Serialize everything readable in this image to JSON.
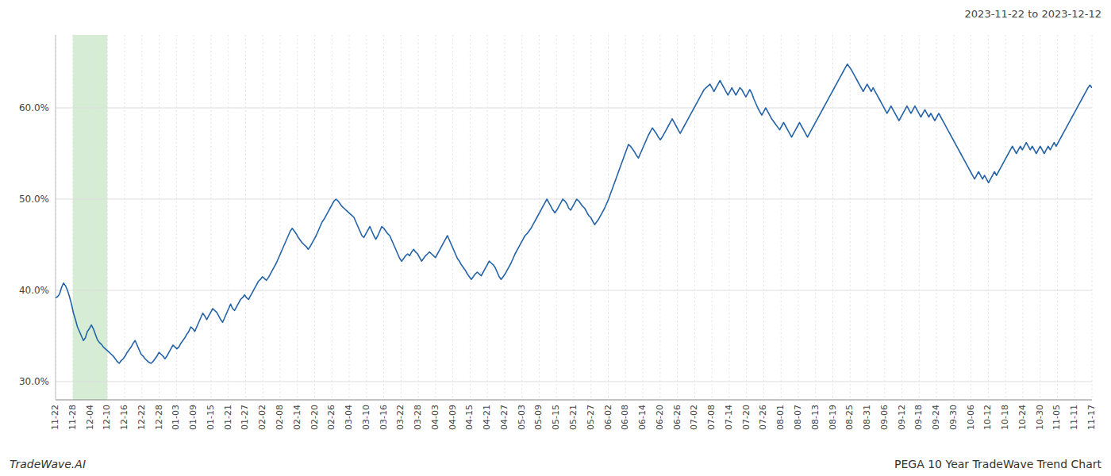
{
  "chart_data": {
    "type": "line",
    "title": "PEGA 10 Year TradeWave Trend Chart",
    "subtitle": "2023-11-22 to 2023-12-12",
    "annotations": [
      "TradeWave.AI"
    ],
    "color": "#2563a8",
    "grid": true,
    "xlim": [
      0,
      60
    ],
    "xticks": [
      {
        "value": 0,
        "label": "11-22"
      },
      {
        "value": 1,
        "label": "11-28"
      },
      {
        "value": 2,
        "label": "12-04"
      },
      {
        "value": 3,
        "label": "12-10"
      },
      {
        "value": 4,
        "label": "12-16"
      },
      {
        "value": 5,
        "label": "12-22"
      },
      {
        "value": 6,
        "label": "12-28"
      },
      {
        "value": 7,
        "label": "01-03"
      },
      {
        "value": 8,
        "label": "01-09"
      },
      {
        "value": 9,
        "label": "01-15"
      },
      {
        "value": 10,
        "label": "01-21"
      },
      {
        "value": 11,
        "label": "01-27"
      },
      {
        "value": 12,
        "label": "02-02"
      },
      {
        "value": 13,
        "label": "02-08"
      },
      {
        "value": 14,
        "label": "02-14"
      },
      {
        "value": 15,
        "label": "02-20"
      },
      {
        "value": 16,
        "label": "02-26"
      },
      {
        "value": 17,
        "label": "03-04"
      },
      {
        "value": 18,
        "label": "03-10"
      },
      {
        "value": 19,
        "label": "03-16"
      },
      {
        "value": 20,
        "label": "03-22"
      },
      {
        "value": 21,
        "label": "03-28"
      },
      {
        "value": 22,
        "label": "04-03"
      },
      {
        "value": 23,
        "label": "04-09"
      },
      {
        "value": 24,
        "label": "04-15"
      },
      {
        "value": 25,
        "label": "04-21"
      },
      {
        "value": 26,
        "label": "04-27"
      },
      {
        "value": 27,
        "label": "05-03"
      },
      {
        "value": 28,
        "label": "05-09"
      },
      {
        "value": 29,
        "label": "05-15"
      },
      {
        "value": 30,
        "label": "05-21"
      },
      {
        "value": 31,
        "label": "05-27"
      },
      {
        "value": 32,
        "label": "06-02"
      },
      {
        "value": 33,
        "label": "06-08"
      },
      {
        "value": 34,
        "label": "06-14"
      },
      {
        "value": 35,
        "label": "06-20"
      },
      {
        "value": 36,
        "label": "06-26"
      },
      {
        "value": 37,
        "label": "07-02"
      },
      {
        "value": 38,
        "label": "07-08"
      },
      {
        "value": 39,
        "label": "07-14"
      },
      {
        "value": 40,
        "label": "07-20"
      },
      {
        "value": 41,
        "label": "07-26"
      },
      {
        "value": 42,
        "label": "08-01"
      },
      {
        "value": 43,
        "label": "08-07"
      },
      {
        "value": 44,
        "label": "08-13"
      },
      {
        "value": 45,
        "label": "08-19"
      },
      {
        "value": 46,
        "label": "08-25"
      },
      {
        "value": 47,
        "label": "08-31"
      },
      {
        "value": 48,
        "label": "09-06"
      },
      {
        "value": 49,
        "label": "09-12"
      },
      {
        "value": 50,
        "label": "09-18"
      },
      {
        "value": 51,
        "label": "09-24"
      },
      {
        "value": 52,
        "label": "09-30"
      },
      {
        "value": 53,
        "label": "10-06"
      },
      {
        "value": 54,
        "label": "10-12"
      },
      {
        "value": 55,
        "label": "10-18"
      },
      {
        "value": 56,
        "label": "10-24"
      },
      {
        "value": 57,
        "label": "10-30"
      },
      {
        "value": 58,
        "label": "11-05"
      },
      {
        "value": 59,
        "label": "11-11"
      },
      {
        "value": 60,
        "label": "11-17"
      }
    ],
    "ylim": [
      0.28,
      0.68
    ],
    "yticks": [
      {
        "value": 0.3,
        "label": "30.0%"
      },
      {
        "value": 0.4,
        "label": "40.0%"
      },
      {
        "value": 0.5,
        "label": "50.0%"
      },
      {
        "value": 0.6,
        "label": "60.0%"
      }
    ],
    "highlight_range": [
      1,
      3
    ],
    "highlight_color": "#d6ecd4",
    "values": [
      0.392,
      0.393,
      0.396,
      0.403,
      0.408,
      0.405,
      0.4,
      0.393,
      0.385,
      0.375,
      0.368,
      0.36,
      0.355,
      0.35,
      0.345,
      0.348,
      0.355,
      0.358,
      0.362,
      0.358,
      0.352,
      0.346,
      0.343,
      0.341,
      0.338,
      0.336,
      0.334,
      0.332,
      0.33,
      0.328,
      0.325,
      0.322,
      0.32,
      0.323,
      0.325,
      0.328,
      0.332,
      0.335,
      0.338,
      0.342,
      0.345,
      0.34,
      0.335,
      0.33,
      0.328,
      0.325,
      0.323,
      0.321,
      0.32,
      0.322,
      0.325,
      0.328,
      0.332,
      0.33,
      0.328,
      0.325,
      0.328,
      0.332,
      0.336,
      0.34,
      0.338,
      0.336,
      0.338,
      0.342,
      0.345,
      0.348,
      0.352,
      0.355,
      0.36,
      0.358,
      0.355,
      0.36,
      0.365,
      0.37,
      0.375,
      0.372,
      0.368,
      0.372,
      0.376,
      0.38,
      0.378,
      0.376,
      0.372,
      0.368,
      0.365,
      0.37,
      0.375,
      0.38,
      0.385,
      0.38,
      0.378,
      0.382,
      0.386,
      0.39,
      0.392,
      0.395,
      0.392,
      0.39,
      0.394,
      0.398,
      0.402,
      0.406,
      0.41,
      0.412,
      0.415,
      0.413,
      0.411,
      0.414,
      0.418,
      0.422,
      0.426,
      0.43,
      0.435,
      0.44,
      0.445,
      0.45,
      0.455,
      0.46,
      0.465,
      0.468,
      0.465,
      0.462,
      0.458,
      0.455,
      0.452,
      0.45,
      0.448,
      0.445,
      0.448,
      0.452,
      0.456,
      0.46,
      0.465,
      0.47,
      0.475,
      0.478,
      0.482,
      0.486,
      0.49,
      0.494,
      0.498,
      0.5,
      0.498,
      0.495,
      0.492,
      0.49,
      0.488,
      0.486,
      0.484,
      0.482,
      0.48,
      0.475,
      0.47,
      0.465,
      0.46,
      0.458,
      0.462,
      0.466,
      0.47,
      0.465,
      0.46,
      0.456,
      0.46,
      0.465,
      0.47,
      0.468,
      0.465,
      0.462,
      0.46,
      0.455,
      0.45,
      0.445,
      0.44,
      0.435,
      0.432,
      0.435,
      0.438,
      0.44,
      0.438,
      0.442,
      0.445,
      0.442,
      0.44,
      0.436,
      0.432,
      0.435,
      0.438,
      0.44,
      0.442,
      0.44,
      0.438,
      0.436,
      0.44,
      0.444,
      0.448,
      0.452,
      0.456,
      0.46,
      0.455,
      0.45,
      0.445,
      0.44,
      0.435,
      0.432,
      0.428,
      0.425,
      0.422,
      0.418,
      0.415,
      0.412,
      0.415,
      0.418,
      0.42,
      0.418,
      0.416,
      0.42,
      0.424,
      0.428,
      0.432,
      0.43,
      0.428,
      0.425,
      0.42,
      0.415,
      0.412,
      0.415,
      0.418,
      0.422,
      0.426,
      0.43,
      0.435,
      0.44,
      0.444,
      0.448,
      0.452,
      0.456,
      0.46,
      0.462,
      0.465,
      0.468,
      0.472,
      0.476,
      0.48,
      0.484,
      0.488,
      0.492,
      0.496,
      0.5,
      0.496,
      0.492,
      0.488,
      0.485,
      0.488,
      0.492,
      0.496,
      0.5,
      0.498,
      0.495,
      0.49,
      0.488,
      0.492,
      0.496,
      0.5,
      0.498,
      0.495,
      0.492,
      0.49,
      0.486,
      0.482,
      0.48,
      0.476,
      0.472,
      0.475,
      0.478,
      0.482,
      0.486,
      0.49,
      0.495,
      0.5,
      0.506,
      0.512,
      0.518,
      0.524,
      0.53,
      0.536,
      0.542,
      0.548,
      0.554,
      0.56,
      0.558,
      0.555,
      0.552,
      0.548,
      0.545,
      0.55,
      0.555,
      0.56,
      0.565,
      0.57,
      0.574,
      0.578,
      0.575,
      0.572,
      0.568,
      0.565,
      0.568,
      0.572,
      0.576,
      0.58,
      0.584,
      0.588,
      0.584,
      0.58,
      0.576,
      0.572,
      0.576,
      0.58,
      0.584,
      0.588,
      0.592,
      0.596,
      0.6,
      0.604,
      0.608,
      0.612,
      0.616,
      0.62,
      0.622,
      0.624,
      0.626,
      0.622,
      0.618,
      0.622,
      0.626,
      0.63,
      0.626,
      0.622,
      0.618,
      0.614,
      0.618,
      0.622,
      0.618,
      0.614,
      0.618,
      0.622,
      0.62,
      0.616,
      0.612,
      0.616,
      0.62,
      0.616,
      0.61,
      0.605,
      0.6,
      0.596,
      0.592,
      0.596,
      0.6,
      0.596,
      0.592,
      0.588,
      0.585,
      0.582,
      0.579,
      0.576,
      0.58,
      0.584,
      0.58,
      0.576,
      0.572,
      0.568,
      0.572,
      0.576,
      0.58,
      0.584,
      0.58,
      0.576,
      0.572,
      0.568,
      0.572,
      0.576,
      0.58,
      0.584,
      0.588,
      0.592,
      0.596,
      0.6,
      0.604,
      0.608,
      0.612,
      0.616,
      0.62,
      0.624,
      0.628,
      0.632,
      0.636,
      0.64,
      0.644,
      0.648,
      0.645,
      0.642,
      0.638,
      0.634,
      0.63,
      0.626,
      0.622,
      0.618,
      0.622,
      0.626,
      0.622,
      0.618,
      0.622,
      0.618,
      0.614,
      0.61,
      0.606,
      0.602,
      0.598,
      0.594,
      0.598,
      0.602,
      0.598,
      0.594,
      0.59,
      0.586,
      0.59,
      0.594,
      0.598,
      0.602,
      0.598,
      0.594,
      0.598,
      0.602,
      0.598,
      0.594,
      0.59,
      0.594,
      0.598,
      0.594,
      0.59,
      0.594,
      0.59,
      0.586,
      0.59,
      0.594,
      0.59,
      0.586,
      0.582,
      0.578,
      0.574,
      0.57,
      0.566,
      0.562,
      0.558,
      0.554,
      0.55,
      0.546,
      0.542,
      0.538,
      0.534,
      0.53,
      0.526,
      0.522,
      0.526,
      0.53,
      0.526,
      0.522,
      0.526,
      0.522,
      0.518,
      0.522,
      0.526,
      0.53,
      0.526,
      0.53,
      0.534,
      0.538,
      0.542,
      0.546,
      0.55,
      0.554,
      0.558,
      0.554,
      0.55,
      0.554,
      0.558,
      0.554,
      0.558,
      0.562,
      0.558,
      0.554,
      0.558,
      0.554,
      0.55,
      0.554,
      0.558,
      0.554,
      0.55,
      0.554,
      0.558,
      0.554,
      0.558,
      0.562,
      0.558,
      0.562,
      0.566,
      0.57,
      0.574,
      0.578,
      0.582,
      0.586,
      0.59,
      0.594,
      0.598,
      0.602,
      0.606,
      0.61,
      0.614,
      0.618,
      0.622,
      0.625,
      0.622
    ]
  }
}
